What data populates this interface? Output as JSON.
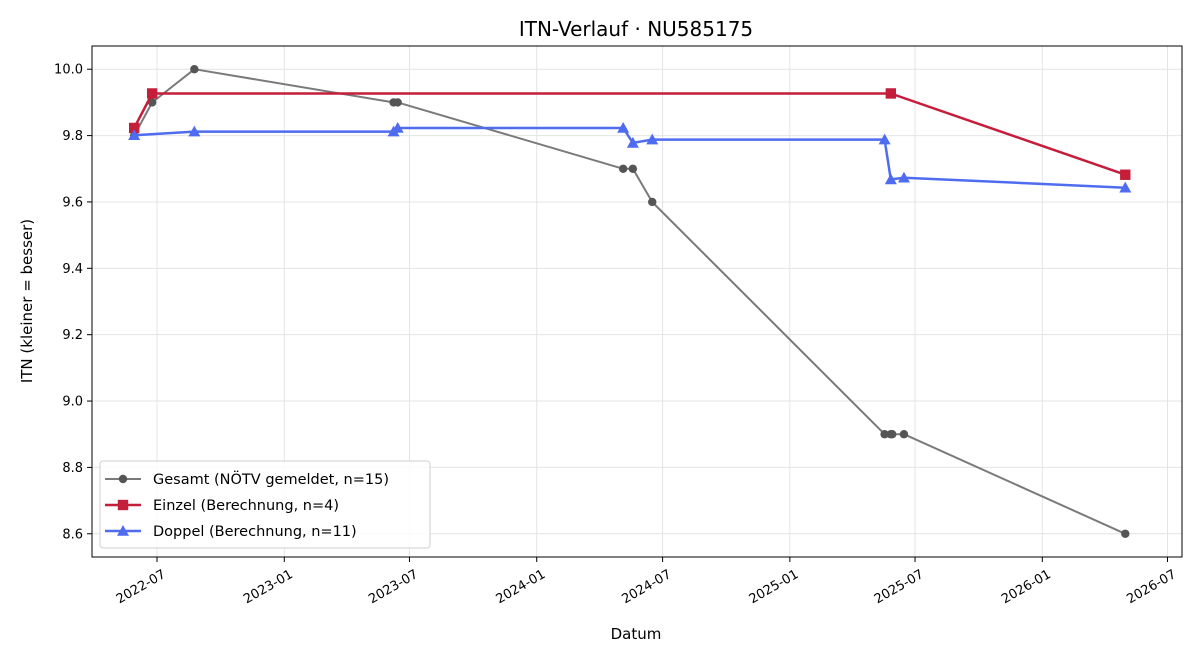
{
  "chart_data": {
    "type": "line",
    "title": "ITN-Verlauf · NU585175",
    "xlabel": "Datum",
    "ylabel": "ITN  (kleiner = besser)",
    "xlim": [
      "2022-03-29",
      "2026-07-22"
    ],
    "ylim": [
      8.53,
      10.07
    ],
    "x_ticks": [
      "2022-07",
      "2023-01",
      "2023-07",
      "2024-01",
      "2024-07",
      "2025-01",
      "2025-07",
      "2026-01",
      "2026-07"
    ],
    "y_ticks": [
      "8.6",
      "8.8",
      "9.0",
      "9.2",
      "9.4",
      "9.6",
      "9.8",
      "10.0"
    ],
    "grid": true,
    "legend_position": "bottom-left",
    "series": [
      {
        "name": "Gesamt (NÖTV gemeldet, n=15)",
        "color": "#7a7a7a",
        "marker_color": "#555555",
        "marker": "circle",
        "points": [
          {
            "x": "2022-05-29",
            "y": 9.8
          },
          {
            "x": "2022-06-24",
            "y": 9.9
          },
          {
            "x": "2022-08-24",
            "y": 10.0
          },
          {
            "x": "2023-06-08",
            "y": 9.9
          },
          {
            "x": "2023-06-14",
            "y": 9.9
          },
          {
            "x": "2024-05-05",
            "y": 9.7
          },
          {
            "x": "2024-05-19",
            "y": 9.7
          },
          {
            "x": "2024-06-16",
            "y": 9.6
          },
          {
            "x": "2025-05-18",
            "y": 8.9
          },
          {
            "x": "2025-05-27",
            "y": 8.9
          },
          {
            "x": "2025-05-29",
            "y": 8.9
          },
          {
            "x": "2025-06-15",
            "y": 8.9
          },
          {
            "x": "2026-05-01",
            "y": 8.6
          }
        ]
      },
      {
        "name": "Einzel (Berechnung, n=4)",
        "color": "#c41e3a",
        "marker_color": "#c41e3a",
        "marker": "square",
        "points": [
          {
            "x": "2022-05-29",
            "y": 9.823
          },
          {
            "x": "2022-06-24",
            "y": 9.927
          },
          {
            "x": "2025-05-27",
            "y": 9.927
          },
          {
            "x": "2026-05-01",
            "y": 9.682
          }
        ]
      },
      {
        "name": "Doppel (Berechnung, n=11)",
        "color": "#4f6cf0",
        "marker_color": "#4f6cf0",
        "marker": "triangle",
        "points": [
          {
            "x": "2022-05-29",
            "y": 9.801
          },
          {
            "x": "2022-08-24",
            "y": 9.812
          },
          {
            "x": "2023-06-08",
            "y": 9.812
          },
          {
            "x": "2023-06-14",
            "y": 9.823
          },
          {
            "x": "2024-05-05",
            "y": 9.823
          },
          {
            "x": "2024-05-19",
            "y": 9.778
          },
          {
            "x": "2024-06-16",
            "y": 9.788
          },
          {
            "x": "2025-05-18",
            "y": 9.788
          },
          {
            "x": "2025-05-27",
            "y": 9.668
          },
          {
            "x": "2025-06-15",
            "y": 9.673
          },
          {
            "x": "2026-05-01",
            "y": 9.643
          }
        ]
      }
    ]
  }
}
